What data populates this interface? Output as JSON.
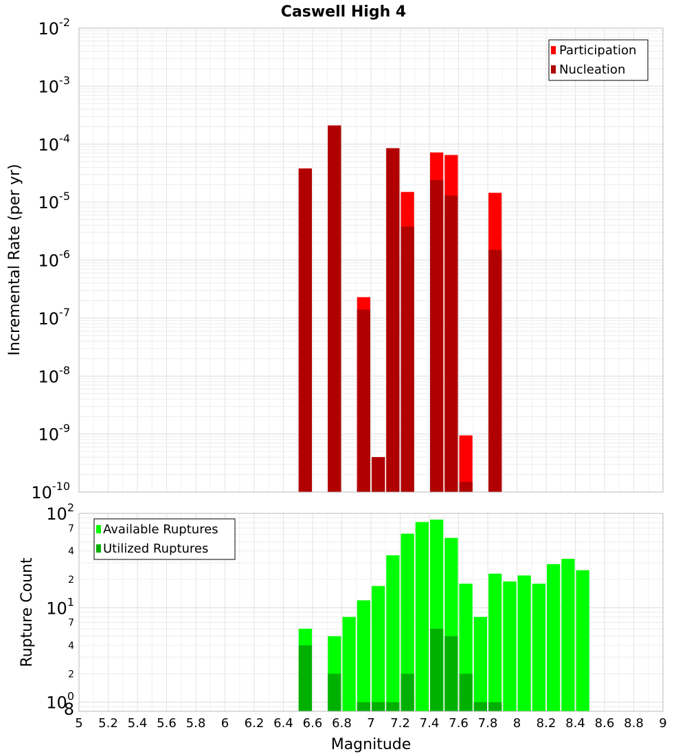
{
  "chart_data": [
    {
      "type": "bar",
      "title": "Caswell High 4",
      "xlabel": "",
      "ylabel": "Incremental Rate (per yr)",
      "yscale": "log",
      "ylim": [
        1e-10,
        0.01
      ],
      "xlim": [
        5,
        9
      ],
      "bar_width": 0.1,
      "grid": true,
      "legend_position": "top-right",
      "y_ticks": [
        {
          "base": "10",
          "exp": "-2",
          "value": 0.01
        },
        {
          "base": "10",
          "exp": "-3",
          "value": 0.001
        },
        {
          "base": "10",
          "exp": "-4",
          "value": 0.0001
        },
        {
          "base": "10",
          "exp": "-5",
          "value": 1e-05
        },
        {
          "base": "10",
          "exp": "-6",
          "value": 1e-06
        },
        {
          "base": "10",
          "exp": "-7",
          "value": 1e-07
        },
        {
          "base": "10",
          "exp": "-8",
          "value": 1e-08
        },
        {
          "base": "10",
          "exp": "-9",
          "value": 1e-09
        },
        {
          "base": "10",
          "exp": "-10",
          "value": 1e-10
        }
      ],
      "series": [
        {
          "name": "Participation",
          "color": "#ff0000",
          "x": [
            6.55,
            6.75,
            6.95,
            7.05,
            7.15,
            7.25,
            7.45,
            7.55,
            7.65,
            7.85
          ],
          "values": [
            3.8e-05,
            0.00021,
            2.3e-07,
            4e-10,
            8.5e-05,
            1.5e-05,
            7.2e-05,
            6.5e-05,
            9.5e-10,
            1.45e-05
          ]
        },
        {
          "name": "Nucleation",
          "color": "#b00000",
          "x": [
            6.55,
            6.75,
            6.95,
            7.05,
            7.15,
            7.25,
            7.45,
            7.55,
            7.65,
            7.85
          ],
          "values": [
            3.8e-05,
            0.00021,
            1.4e-07,
            4e-10,
            8.5e-05,
            3.8e-06,
            2.4e-05,
            1.3e-05,
            1.5e-10,
            1.5e-06
          ]
        }
      ]
    },
    {
      "type": "bar",
      "title": "",
      "xlabel": "Magnitude",
      "ylabel": "Rupture Count",
      "yscale": "log",
      "ylim": [
        0.8,
        100
      ],
      "xlim": [
        5,
        9
      ],
      "bar_width": 0.1,
      "grid": true,
      "legend_position": "top-left",
      "x_ticks": [
        "5",
        "5.2",
        "5.4",
        "5.6",
        "5.8",
        "6",
        "6.2",
        "6.4",
        "6.6",
        "6.8",
        "7",
        "7.2",
        "7.4",
        "7.6",
        "7.8",
        "8",
        "8.2",
        "8.4",
        "8.6",
        "8.8",
        "9"
      ],
      "y_major_ticks": [
        {
          "base": "10",
          "exp": "2",
          "value": 100
        },
        {
          "base": "10",
          "exp": "1",
          "value": 10
        },
        {
          "base": "10",
          "exp": "0",
          "value": 1
        }
      ],
      "y_minor_ticks": [
        {
          "label": "7",
          "value": 70
        },
        {
          "label": "4",
          "value": 40
        },
        {
          "label": "2",
          "value": 20
        },
        {
          "label": "7",
          "value": 7
        },
        {
          "label": "4",
          "value": 4
        },
        {
          "label": "2",
          "value": 2
        },
        {
          "label": "8",
          "value": 0.8
        }
      ],
      "series": [
        {
          "name": "Available Ruptures",
          "color": "#00ff00",
          "x": [
            6.55,
            6.75,
            6.85,
            6.95,
            7.05,
            7.15,
            7.25,
            7.35,
            7.45,
            7.55,
            7.65,
            7.75,
            7.85,
            7.95,
            8.05,
            8.15,
            8.25,
            8.35,
            8.45
          ],
          "values": [
            6,
            5,
            8,
            12,
            17,
            36,
            61,
            81,
            86,
            55,
            18,
            8,
            23,
            19,
            22,
            18,
            29,
            33,
            25
          ]
        },
        {
          "name": "Utilized Ruptures",
          "color": "#00b000",
          "x": [
            6.55,
            6.75,
            6.95,
            7.05,
            7.15,
            7.25,
            7.45,
            7.55,
            7.65,
            7.75,
            7.85
          ],
          "values": [
            4,
            2,
            1,
            1,
            1,
            2,
            6,
            5,
            2,
            1,
            1
          ]
        }
      ]
    }
  ]
}
